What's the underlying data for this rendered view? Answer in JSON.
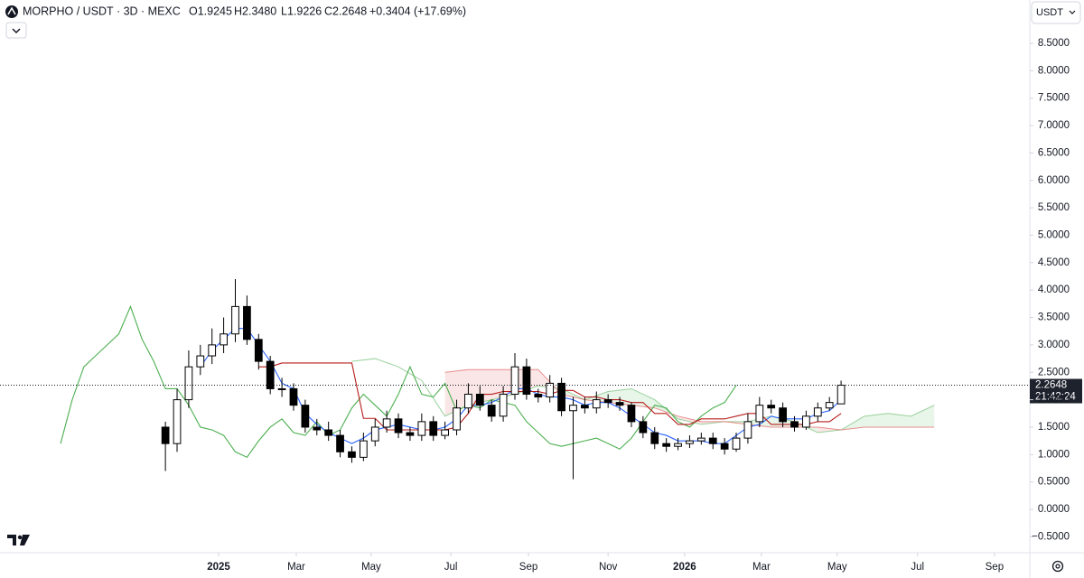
{
  "header": {
    "symbol": "MORPHO / USDT · 3D · MEXC",
    "ohlc": [
      "O1.9245",
      "H2.3480",
      "L1.9226",
      "C2.2648"
    ],
    "change": "+0.3404 (+17.69%)",
    "currency": "USDT",
    "countdown": "21:42:24"
  },
  "chart_data": {
    "type": "candlestick",
    "x": [
      0,
      3,
      6,
      9,
      12,
      15,
      18,
      21,
      24,
      27,
      30,
      33,
      36,
      39,
      42,
      45,
      48,
      51,
      54,
      57,
      60,
      63,
      66,
      69,
      72,
      75,
      78,
      81,
      84,
      87,
      90,
      93,
      96,
      99,
      102,
      105,
      108,
      111,
      114,
      117,
      120,
      123,
      126,
      129,
      132,
      135,
      138,
      141,
      144,
      147,
      150,
      153,
      156,
      159,
      162,
      165,
      168,
      171,
      174
    ],
    "open": [
      1.5,
      1.2,
      2.0,
      2.6,
      2.8,
      3.0,
      3.2,
      3.7,
      3.1,
      2.7,
      2.2,
      2.2,
      1.9,
      1.5,
      1.45,
      1.35,
      1.05,
      0.95,
      1.25,
      1.5,
      1.65,
      1.4,
      1.35,
      1.6,
      1.35,
      1.45,
      1.85,
      2.1,
      1.9,
      1.7,
      2.1,
      2.6,
      2.1,
      2.05,
      2.3,
      1.8,
      1.9,
      1.85,
      2.0,
      1.95,
      1.9,
      1.6,
      1.4,
      1.2,
      1.15,
      1.2,
      1.25,
      1.3,
      1.2,
      1.1,
      1.3,
      1.6,
      1.9,
      1.85,
      1.6,
      1.5,
      1.7,
      1.85,
      1.9245
    ],
    "high": [
      1.6,
      2.2,
      2.9,
      3.0,
      3.3,
      3.5,
      4.2,
      3.9,
      3.2,
      2.8,
      2.4,
      2.3,
      2.0,
      1.65,
      1.6,
      1.45,
      1.15,
      1.4,
      1.65,
      1.8,
      1.75,
      1.5,
      1.75,
      1.7,
      1.6,
      2.0,
      2.3,
      2.25,
      2.0,
      2.25,
      2.85,
      2.75,
      2.2,
      2.45,
      2.4,
      2.05,
      2.05,
      2.15,
      2.1,
      2.05,
      1.95,
      1.7,
      1.5,
      1.3,
      1.3,
      1.35,
      1.4,
      1.4,
      1.3,
      1.4,
      1.75,
      2.05,
      2.0,
      1.95,
      1.7,
      1.8,
      1.95,
      2.05,
      2.348
    ],
    "low": [
      0.7,
      1.05,
      1.85,
      2.45,
      2.65,
      2.85,
      3.05,
      3.0,
      2.55,
      2.1,
      2.05,
      1.8,
      1.4,
      1.35,
      1.25,
      0.95,
      0.85,
      0.88,
      1.15,
      1.4,
      1.3,
      1.25,
      1.25,
      1.25,
      1.28,
      1.35,
      1.75,
      1.8,
      1.6,
      1.6,
      2.0,
      2.0,
      1.95,
      1.95,
      1.7,
      0.55,
      1.75,
      1.75,
      1.85,
      1.8,
      1.5,
      1.3,
      1.1,
      1.05,
      1.08,
      1.12,
      1.18,
      1.1,
      1.0,
      1.05,
      1.2,
      1.5,
      1.75,
      1.5,
      1.42,
      1.45,
      1.6,
      1.8,
      1.9226
    ],
    "close": [
      1.2,
      2.0,
      2.6,
      2.8,
      3.0,
      3.2,
      3.7,
      3.1,
      2.7,
      2.2,
      2.2,
      1.9,
      1.5,
      1.45,
      1.35,
      1.05,
      0.95,
      1.25,
      1.5,
      1.65,
      1.4,
      1.35,
      1.6,
      1.35,
      1.45,
      1.85,
      2.1,
      1.9,
      1.7,
      2.1,
      2.6,
      2.1,
      2.05,
      2.3,
      1.8,
      1.9,
      1.85,
      2.0,
      1.95,
      1.9,
      1.6,
      1.4,
      1.2,
      1.15,
      1.2,
      1.25,
      1.3,
      1.2,
      1.1,
      1.3,
      1.6,
      1.9,
      1.85,
      1.6,
      1.5,
      1.7,
      1.85,
      1.95,
      2.2648
    ],
    "up_color": "#ffffff",
    "down_color": "#000000",
    "lines": [
      {
        "color": "#4caf50",
        "x": [
          -27,
          -24,
          -21,
          -18,
          -15,
          -12,
          -9,
          -6,
          -3,
          0,
          3,
          6,
          9,
          12,
          15,
          18,
          21,
          24,
          27,
          30,
          33,
          36,
          39,
          42,
          45,
          48,
          51,
          54,
          57,
          60,
          63,
          66,
          69,
          72,
          75,
          78,
          81,
          84,
          87,
          90,
          93,
          96,
          99,
          102,
          105,
          108,
          111,
          114,
          117,
          120,
          123,
          126,
          129,
          132,
          135,
          138,
          141,
          144,
          147
        ],
        "values": [
          1.2,
          2.0,
          2.6,
          2.8,
          3.0,
          3.2,
          3.7,
          3.1,
          2.7,
          2.2,
          2.2,
          1.9,
          1.5,
          1.45,
          1.35,
          1.05,
          0.95,
          1.25,
          1.5,
          1.65,
          1.4,
          1.35,
          1.6,
          1.35,
          1.45,
          1.85,
          2.1,
          1.9,
          1.7,
          2.1,
          2.6,
          2.1,
          2.05,
          2.3,
          1.8,
          1.9,
          1.85,
          2.0,
          1.95,
          1.9,
          1.6,
          1.4,
          1.2,
          1.15,
          1.2,
          1.25,
          1.3,
          1.2,
          1.1,
          1.3,
          1.6,
          1.9,
          1.85,
          1.6,
          1.5,
          1.7,
          1.85,
          1.95,
          2.2648
        ]
      },
      {
        "color": "#2962ff",
        "x": [
          9,
          12,
          15,
          18,
          21,
          24,
          27,
          30,
          33,
          36,
          39,
          42,
          45,
          48,
          51,
          54,
          57,
          60,
          63,
          66,
          69,
          72,
          75,
          78,
          81,
          84,
          87,
          90,
          93,
          96,
          99,
          102,
          105,
          108,
          111,
          114,
          117,
          120,
          123,
          126,
          129,
          132,
          135,
          138,
          141,
          144,
          147,
          150,
          153,
          156,
          159,
          162,
          165,
          168,
          171,
          174
        ],
        "values": [
          2.6,
          2.9,
          3.1,
          3.3,
          3.3,
          3.0,
          2.7,
          2.3,
          2.2,
          1.75,
          1.55,
          1.4,
          1.3,
          1.2,
          1.3,
          1.45,
          1.5,
          1.55,
          1.5,
          1.45,
          1.45,
          1.5,
          1.65,
          1.9,
          1.9,
          1.95,
          2.05,
          2.2,
          2.2,
          2.1,
          2.05,
          2.05,
          2.0,
          1.9,
          1.95,
          1.95,
          1.85,
          1.7,
          1.55,
          1.4,
          1.35,
          1.25,
          1.25,
          1.25,
          1.2,
          1.2,
          1.35,
          1.5,
          1.55,
          1.7,
          1.65,
          1.65,
          1.65,
          1.75,
          1.8,
          2.0
        ]
      },
      {
        "color": "#b71c1c",
        "x": [
          24,
          27,
          30,
          33,
          36,
          39,
          42,
          45,
          48,
          51,
          54,
          57,
          60,
          63,
          66,
          69,
          72,
          75,
          78,
          81,
          84,
          87,
          90,
          93,
          96,
          99,
          102,
          105,
          108,
          111,
          114,
          117,
          120,
          123,
          126,
          129,
          132,
          135,
          138,
          141,
          144,
          147,
          150,
          153,
          156,
          159,
          162,
          165,
          168,
          171,
          174
        ],
        "values": [
          2.6,
          2.6,
          2.67,
          2.67,
          2.67,
          2.67,
          2.67,
          2.67,
          2.67,
          1.66,
          1.66,
          1.45,
          1.45,
          1.45,
          1.45,
          1.45,
          1.45,
          1.5,
          1.75,
          2.1,
          2.1,
          2.15,
          2.15,
          2.15,
          2.15,
          2.1,
          2.17,
          2.17,
          2.05,
          2.05,
          2.0,
          2.0,
          1.95,
          1.95,
          1.75,
          1.75,
          1.55,
          1.55,
          1.65,
          1.65,
          1.65,
          1.7,
          1.75,
          1.75,
          1.55,
          1.55,
          1.55,
          1.55,
          1.6,
          1.6,
          1.75
        ]
      }
    ],
    "cloud": {
      "x": [
        48,
        54,
        60,
        66,
        72,
        78,
        84,
        90,
        96,
        102,
        108,
        114,
        120,
        126,
        132,
        138,
        144,
        150,
        156,
        162,
        168,
        174,
        180,
        186,
        192,
        198
      ],
      "span_a": [
        2.7,
        2.75,
        2.6,
        2.35,
        1.7,
        1.9,
        2.0,
        2.1,
        2.25,
        2.2,
        2.0,
        2.15,
        2.2,
        2.0,
        1.65,
        1.55,
        1.6,
        1.6,
        1.7,
        1.6,
        1.4,
        1.45,
        1.7,
        1.75,
        1.7,
        1.9
      ],
      "span_b": [
        null,
        null,
        null,
        null,
        2.5,
        2.55,
        2.55,
        2.55,
        2.55,
        2.1,
        2.0,
        1.95,
        1.9,
        1.85,
        1.7,
        1.6,
        1.6,
        1.55,
        1.5,
        1.5,
        1.5,
        1.45,
        1.5,
        1.5,
        1.5,
        1.5
      ],
      "a_color": "#81c784",
      "b_color": "#e57373"
    },
    "xlim": [
      -42.6,
      222.6
    ],
    "ylim": [
      -0.79,
      9.29
    ],
    "xticks": [
      {
        "value": 13.7,
        "label": "2025"
      },
      {
        "value": 33.7,
        "label": "Mar"
      },
      {
        "value": 53,
        "label": "May"
      },
      {
        "value": 73.5,
        "label": "Jul"
      },
      {
        "value": 93.5,
        "label": "Sep"
      },
      {
        "value": 114,
        "label": "Nov"
      },
      {
        "value": 133.7,
        "label": "2026"
      },
      {
        "value": 153.5,
        "label": "Mar"
      },
      {
        "value": 173,
        "label": "May"
      },
      {
        "value": 193.7,
        "label": "Jul"
      },
      {
        "value": 213.5,
        "label": "Sep"
      }
    ],
    "yticks": [
      {
        "value": 8.5,
        "label": "8.5000"
      },
      {
        "value": 8,
        "label": "8.0000"
      },
      {
        "value": 7.5,
        "label": "7.5000"
      },
      {
        "value": 7,
        "label": "7.0000"
      },
      {
        "value": 6.5,
        "label": "6.5000"
      },
      {
        "value": 6,
        "label": "6.0000"
      },
      {
        "value": 5.5,
        "label": "5.5000"
      },
      {
        "value": 5,
        "label": "5.0000"
      },
      {
        "value": 4.5,
        "label": "4.5000"
      },
      {
        "value": 4,
        "label": "4.0000"
      },
      {
        "value": 3.5,
        "label": "3.5000"
      },
      {
        "value": 3,
        "label": "3.0000"
      },
      {
        "value": 2.5,
        "label": "2.5000"
      },
      {
        "value": 2,
        "label": "2.0000"
      },
      {
        "value": 1.5,
        "label": "1.5000"
      },
      {
        "value": 1,
        "label": "1.0000"
      },
      {
        "value": 0.5,
        "label": "0.5000"
      },
      {
        "value": 0,
        "label": "0.0000"
      },
      {
        "value": -0.5,
        "label": "−0.5000"
      }
    ]
  }
}
